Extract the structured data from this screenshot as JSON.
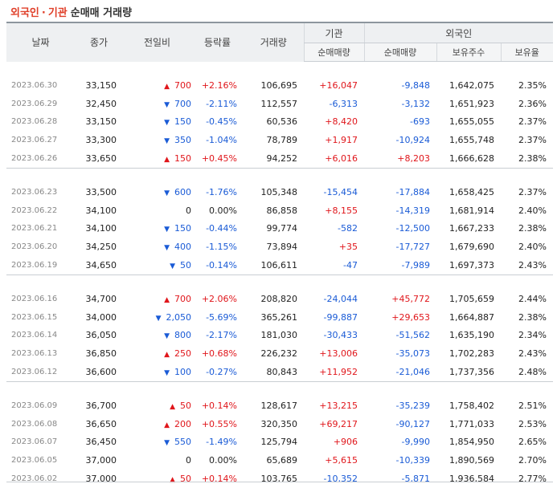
{
  "title": {
    "part1": "외국인",
    "sep": "·",
    "part2": "기관",
    "part3": "순매매 거래량"
  },
  "headers": {
    "date": "날짜",
    "close": "종가",
    "diff": "전일비",
    "rate": "등락률",
    "volume": "거래량",
    "inst": "기관",
    "foreign": "외국인",
    "inst_net": "순매매량",
    "for_net": "순매매량",
    "for_hold": "보유주수",
    "for_ratio": "보유율"
  },
  "colors": {
    "up": "#e0161b",
    "down": "#1a5bd6",
    "title": "#e0402a"
  },
  "groups": [
    [
      {
        "date": "2023.06.30",
        "close": "33,150",
        "dir": "up",
        "diff": "700",
        "rate": "+2.16%",
        "volume": "106,695",
        "inst": "+16,047",
        "foreign": "-9,848",
        "hold": "1,642,075",
        "ratio": "2.35%"
      },
      {
        "date": "2023.06.29",
        "close": "32,450",
        "dir": "down",
        "diff": "700",
        "rate": "-2.11%",
        "volume": "112,557",
        "inst": "-6,313",
        "foreign": "-3,132",
        "hold": "1,651,923",
        "ratio": "2.36%"
      },
      {
        "date": "2023.06.28",
        "close": "33,150",
        "dir": "down",
        "diff": "150",
        "rate": "-0.45%",
        "volume": "60,536",
        "inst": "+8,420",
        "foreign": "-693",
        "hold": "1,655,055",
        "ratio": "2.37%"
      },
      {
        "date": "2023.06.27",
        "close": "33,300",
        "dir": "down",
        "diff": "350",
        "rate": "-1.04%",
        "volume": "78,789",
        "inst": "+1,917",
        "foreign": "-10,924",
        "hold": "1,655,748",
        "ratio": "2.37%"
      },
      {
        "date": "2023.06.26",
        "close": "33,650",
        "dir": "up",
        "diff": "150",
        "rate": "+0.45%",
        "volume": "94,252",
        "inst": "+6,016",
        "foreign": "+8,203",
        "hold": "1,666,628",
        "ratio": "2.38%"
      }
    ],
    [
      {
        "date": "2023.06.23",
        "close": "33,500",
        "dir": "down",
        "diff": "600",
        "rate": "-1.76%",
        "volume": "105,348",
        "inst": "-15,454",
        "foreign": "-17,884",
        "hold": "1,658,425",
        "ratio": "2.37%"
      },
      {
        "date": "2023.06.22",
        "close": "34,100",
        "dir": "none",
        "diff": "0",
        "rate": "0.00%",
        "volume": "86,858",
        "inst": "+8,155",
        "foreign": "-14,319",
        "hold": "1,681,914",
        "ratio": "2.40%"
      },
      {
        "date": "2023.06.21",
        "close": "34,100",
        "dir": "down",
        "diff": "150",
        "rate": "-0.44%",
        "volume": "99,774",
        "inst": "-582",
        "foreign": "-12,500",
        "hold": "1,667,233",
        "ratio": "2.38%"
      },
      {
        "date": "2023.06.20",
        "close": "34,250",
        "dir": "down",
        "diff": "400",
        "rate": "-1.15%",
        "volume": "73,894",
        "inst": "+35",
        "foreign": "-17,727",
        "hold": "1,679,690",
        "ratio": "2.40%"
      },
      {
        "date": "2023.06.19",
        "close": "34,650",
        "dir": "down",
        "diff": "50",
        "rate": "-0.14%",
        "volume": "106,611",
        "inst": "-47",
        "foreign": "-7,989",
        "hold": "1,697,373",
        "ratio": "2.43%"
      }
    ],
    [
      {
        "date": "2023.06.16",
        "close": "34,700",
        "dir": "up",
        "diff": "700",
        "rate": "+2.06%",
        "volume": "208,820",
        "inst": "-24,044",
        "foreign": "+45,772",
        "hold": "1,705,659",
        "ratio": "2.44%"
      },
      {
        "date": "2023.06.15",
        "close": "34,000",
        "dir": "down",
        "diff": "2,050",
        "rate": "-5.69%",
        "volume": "365,261",
        "inst": "-99,887",
        "foreign": "+29,653",
        "hold": "1,664,887",
        "ratio": "2.38%"
      },
      {
        "date": "2023.06.14",
        "close": "36,050",
        "dir": "down",
        "diff": "800",
        "rate": "-2.17%",
        "volume": "181,030",
        "inst": "-30,433",
        "foreign": "-51,562",
        "hold": "1,635,190",
        "ratio": "2.34%"
      },
      {
        "date": "2023.06.13",
        "close": "36,850",
        "dir": "up",
        "diff": "250",
        "rate": "+0.68%",
        "volume": "226,232",
        "inst": "+13,006",
        "foreign": "-35,073",
        "hold": "1,702,283",
        "ratio": "2.43%"
      },
      {
        "date": "2023.06.12",
        "close": "36,600",
        "dir": "down",
        "diff": "100",
        "rate": "-0.27%",
        "volume": "80,843",
        "inst": "+11,952",
        "foreign": "-21,046",
        "hold": "1,737,356",
        "ratio": "2.48%"
      }
    ],
    [
      {
        "date": "2023.06.09",
        "close": "36,700",
        "dir": "up",
        "diff": "50",
        "rate": "+0.14%",
        "volume": "128,617",
        "inst": "+13,215",
        "foreign": "-35,239",
        "hold": "1,758,402",
        "ratio": "2.51%"
      },
      {
        "date": "2023.06.08",
        "close": "36,650",
        "dir": "up",
        "diff": "200",
        "rate": "+0.55%",
        "volume": "320,350",
        "inst": "+69,217",
        "foreign": "-90,127",
        "hold": "1,771,033",
        "ratio": "2.53%"
      },
      {
        "date": "2023.06.07",
        "close": "36,450",
        "dir": "down",
        "diff": "550",
        "rate": "-1.49%",
        "volume": "125,794",
        "inst": "+906",
        "foreign": "-9,990",
        "hold": "1,854,950",
        "ratio": "2.65%"
      },
      {
        "date": "2023.06.05",
        "close": "37,000",
        "dir": "none",
        "diff": "0",
        "rate": "0.00%",
        "volume": "65,689",
        "inst": "+5,615",
        "foreign": "-10,339",
        "hold": "1,890,569",
        "ratio": "2.70%"
      },
      {
        "date": "2023.06.02",
        "close": "37,000",
        "dir": "up",
        "diff": "50",
        "rate": "+0.14%",
        "volume": "103,765",
        "inst": "-10,352",
        "foreign": "-5,871",
        "hold": "1,936,584",
        "ratio": "2.77%"
      }
    ]
  ]
}
